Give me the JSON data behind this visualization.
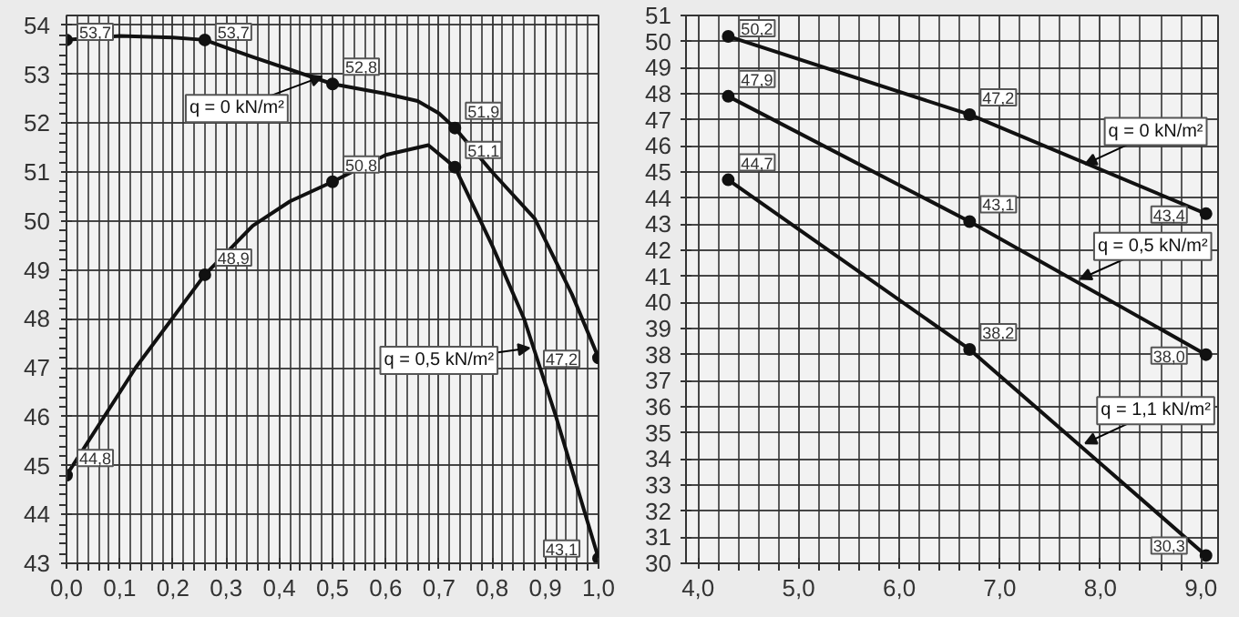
{
  "chart_data": [
    {
      "type": "line",
      "xlim": [
        0,
        1.0
      ],
      "ylim": [
        43,
        54.2
      ],
      "xticks": [
        {
          "value": 0,
          "label": "0,0"
        },
        {
          "value": 0.1,
          "label": "0,1"
        },
        {
          "value": 0.2,
          "label": "0,2"
        },
        {
          "value": 0.3,
          "label": "0,3"
        },
        {
          "value": 0.4,
          "label": "0,4"
        },
        {
          "value": 0.5,
          "label": "0,5"
        },
        {
          "value": 0.6,
          "label": "0,6"
        },
        {
          "value": 0.7,
          "label": "0,7"
        },
        {
          "value": 0.8,
          "label": "0,8"
        },
        {
          "value": 0.9,
          "label": "0,9"
        },
        {
          "value": 1.0,
          "label": "1,0"
        }
      ],
      "yticks": [
        43,
        44,
        45,
        46,
        47,
        48,
        49,
        50,
        51,
        52,
        53,
        54
      ],
      "grid": true,
      "line_style": "solid",
      "series": [
        {
          "color": "#111111",
          "x": [
            0,
            0.1,
            0.2,
            0.26,
            0.35,
            0.5,
            0.6,
            0.66,
            0.7,
            0.73,
            0.8,
            0.88,
            0.95,
            1.0
          ],
          "values": [
            53.7,
            53.78,
            53.75,
            53.7,
            53.35,
            52.8,
            52.6,
            52.45,
            52.2,
            51.9,
            51.0,
            50.05,
            48.5,
            47.2
          ]
        },
        {
          "color": "#111111",
          "x": [
            0,
            0.13,
            0.26,
            0.35,
            0.42,
            0.5,
            0.6,
            0.68,
            0.73,
            0.8,
            0.86,
            0.92,
            1.0
          ],
          "values": [
            44.8,
            47.0,
            48.9,
            49.9,
            50.4,
            50.8,
            51.35,
            51.55,
            51.1,
            49.5,
            48.0,
            46.0,
            43.1
          ]
        },
        {
          "type": "scatter",
          "marker": "circle",
          "color": "#111111",
          "x": [
            0,
            0.26,
            0.5,
            0.73,
            1.0
          ],
          "values": [
            53.7,
            53.7,
            52.8,
            51.9,
            47.2
          ],
          "value_labels": [
            "53,7",
            "53,7",
            "52,8",
            "51,9",
            "47,2"
          ]
        },
        {
          "type": "scatter",
          "marker": "circle",
          "color": "#111111",
          "x": [
            0,
            0.26,
            0.5,
            0.73,
            1.0
          ],
          "values": [
            44.8,
            48.9,
            50.8,
            51.1,
            43.1
          ],
          "value_labels": [
            "44,8",
            "48,9",
            "50,8",
            "51,1",
            "43,1"
          ]
        }
      ],
      "annotations": [
        {
          "text": "q = 0 kN/m²",
          "x": 0.48,
          "y": 52.95
        },
        {
          "text": "q = 0,5 kN/m²",
          "x": 0.87,
          "y": 47.4
        }
      ]
    },
    {
      "type": "line",
      "xlim": [
        3.88,
        9.17
      ],
      "ylim": [
        30,
        51
      ],
      "xticks": [
        {
          "value": 4,
          "label": "4,0"
        },
        {
          "value": 5,
          "label": "5,0"
        },
        {
          "value": 6,
          "label": "6,0"
        },
        {
          "value": 7,
          "label": "7,0"
        },
        {
          "value": 8,
          "label": "8,0"
        },
        {
          "value": 9,
          "label": "9,0"
        }
      ],
      "yticks": [
        30,
        31,
        32,
        33,
        34,
        35,
        36,
        37,
        38,
        39,
        40,
        41,
        42,
        43,
        44,
        45,
        46,
        47,
        48,
        49,
        50,
        51
      ],
      "grid": true,
      "marker": "circle",
      "line_style": "solid",
      "series": [
        {
          "color": "#111111",
          "x": [
            4.3,
            6.7,
            9.05
          ],
          "values": [
            50.2,
            47.2,
            43.4
          ],
          "value_labels": [
            "50,2",
            "47,2",
            "43,4"
          ]
        },
        {
          "color": "#111111",
          "x": [
            4.3,
            6.7,
            9.05
          ],
          "values": [
            47.9,
            43.1,
            38.0
          ],
          "value_labels": [
            "47,9",
            "43,1",
            "38,0"
          ]
        },
        {
          "color": "#111111",
          "x": [
            4.3,
            6.7,
            9.05
          ],
          "values": [
            44.7,
            38.2,
            30.3
          ],
          "value_labels": [
            "44,7",
            "38,2",
            "30,3"
          ]
        }
      ],
      "annotations": [
        {
          "text": "q = 0 kN/m²",
          "x": 7.85,
          "y": 45.3
        },
        {
          "text": "q = 0,5 kN/m²",
          "x": 7.8,
          "y": 40.9
        },
        {
          "text": "q = 1,1 kN/m²",
          "x": 7.85,
          "y": 34.6
        }
      ]
    }
  ]
}
